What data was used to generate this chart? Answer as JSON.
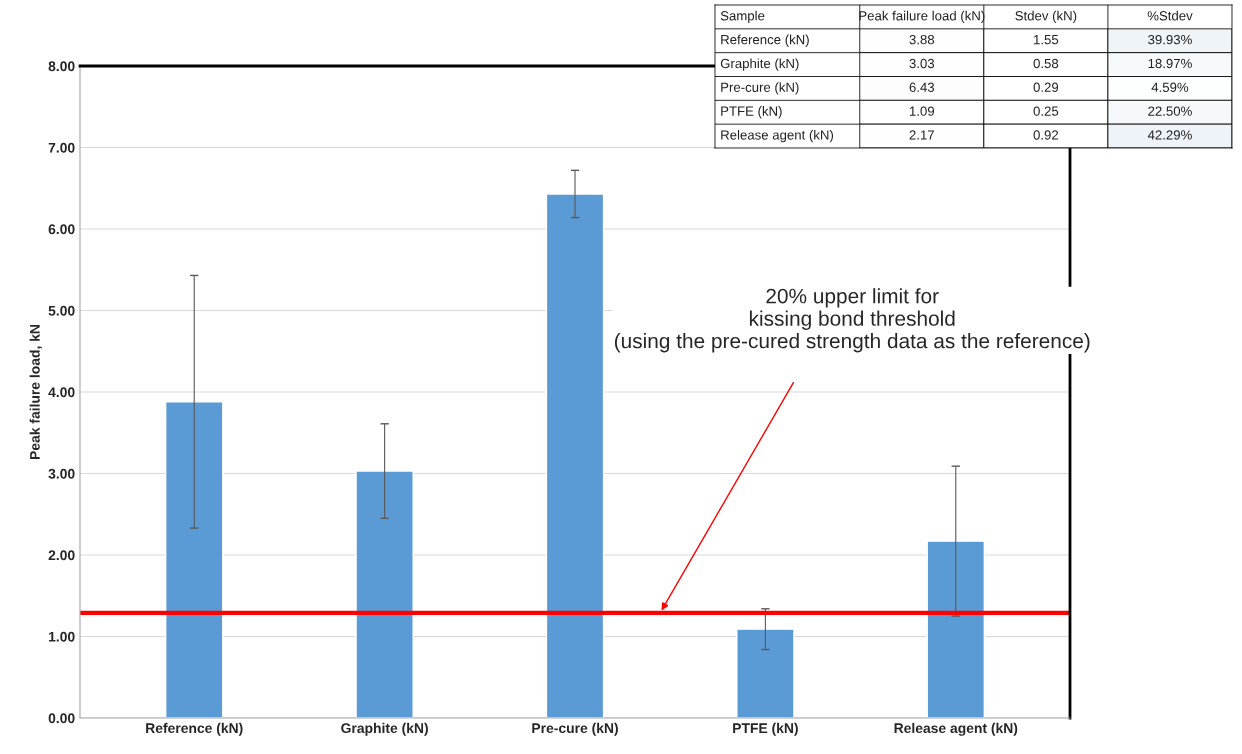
{
  "chart_data": [
    {
      "type": "bar",
      "ylabel": "Peak failure load, kN",
      "categories": [
        "Reference (kN)",
        "Graphite (kN)",
        "Pre-cure (kN)",
        "PTFE (kN)",
        "Release agent (kN)"
      ],
      "values": [
        3.88,
        3.03,
        6.43,
        1.09,
        2.17
      ],
      "errors": [
        1.55,
        0.58,
        0.29,
        0.25,
        0.92
      ],
      "color": "#5b9bd5",
      "ylim": [
        0,
        8
      ],
      "yticks": [
        {
          "value": 0,
          "label": "0.00"
        },
        {
          "value": 1,
          "label": "1.00"
        },
        {
          "value": 2,
          "label": "2.00"
        },
        {
          "value": 3,
          "label": "3.00"
        },
        {
          "value": 4,
          "label": "4.00"
        },
        {
          "value": 5,
          "label": "5.00"
        },
        {
          "value": 6,
          "label": "6.00"
        },
        {
          "value": 7,
          "label": "7.00"
        },
        {
          "value": 8,
          "label": "8.00"
        }
      ],
      "grid": "y",
      "ref_lines": [
        {
          "axis": "y",
          "value": 1.29,
          "color": "#ff0000"
        }
      ],
      "annotations": [
        "20% upper limit for\nkissing bond threshold\n(using the pre-cured strength data as the reference)"
      ]
    },
    {
      "type": "heatmap",
      "ylabel": "Sample",
      "categories": [
        "Peak failure load (kN)",
        "Stdev (kN)",
        "%Stdev"
      ],
      "y_categories": [
        "Reference (kN)",
        "Graphite (kN)",
        "Pre-cure (kN)",
        "PTFE (kN)",
        "Release agent (kN)"
      ],
      "cells": [
        [
          3.88,
          1.55,
          39.93
        ],
        [
          3.03,
          0.58,
          18.97
        ],
        [
          6.43,
          0.29,
          4.59
        ],
        [
          1.09,
          0.25,
          22.5
        ],
        [
          2.17,
          0.92,
          42.29
        ]
      ],
      "cell_labels": [
        [
          "3.88",
          "1.55",
          "39.93%"
        ],
        [
          "3.03",
          "0.58",
          "18.97%"
        ],
        [
          "6.43",
          "0.29",
          "4.59%"
        ],
        [
          "1.09",
          "0.25",
          "22.50%"
        ],
        [
          "2.17",
          "0.92",
          "42.29%"
        ]
      ]
    }
  ]
}
